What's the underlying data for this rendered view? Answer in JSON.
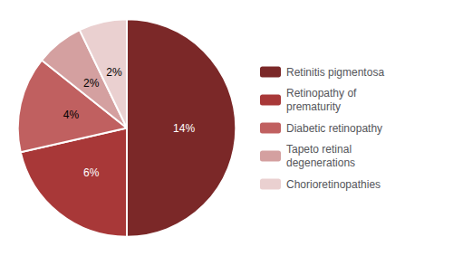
{
  "chart_data": {
    "type": "pie",
    "categories": [
      "Retinitis pigmentosa",
      "Retinopathy of\nprematurity",
      "Diabetic retinopathy",
      "Tapeto retinal\ndegenerations",
      "Chorioretinopathies"
    ],
    "values": [
      14,
      6,
      4,
      2,
      2
    ],
    "value_labels": [
      "14%",
      "6%",
      "4%",
      "2%",
      "2%"
    ],
    "colors": [
      "#7B2828",
      "#A83838",
      "#C06060",
      "#D4A0A0",
      "#EAD0D0"
    ],
    "data_labels": true,
    "legend": "right"
  }
}
